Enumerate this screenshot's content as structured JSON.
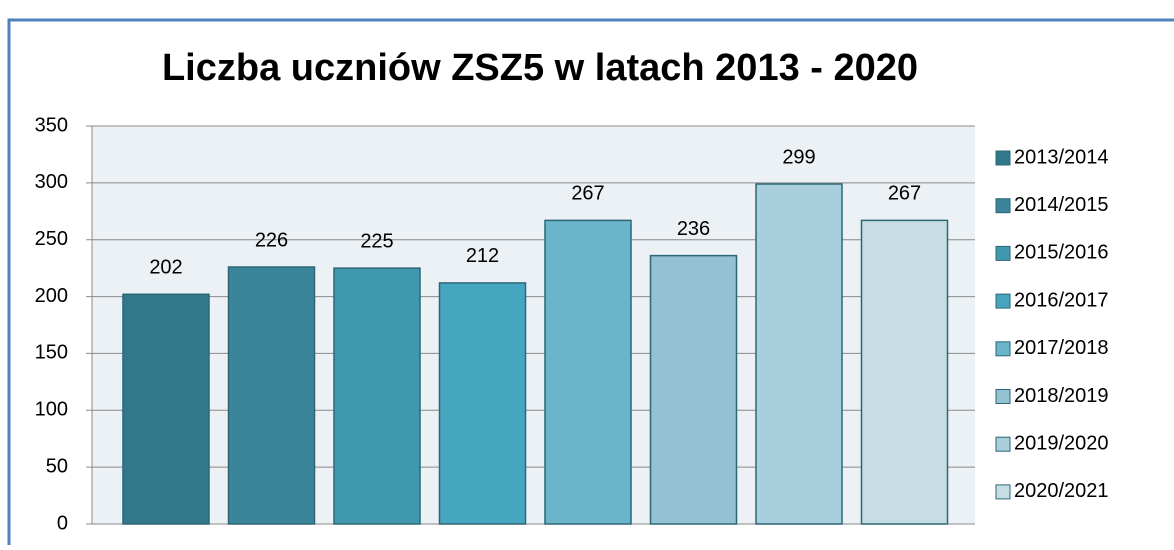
{
  "chart_data": {
    "type": "bar",
    "title": "Liczba uczniów ZSZ5 w latach 2013 - 2020",
    "series": [
      {
        "name": "2013/2014",
        "color": "#31788a",
        "values": [
          202
        ]
      },
      {
        "name": "2014/2015",
        "color": "#3a8599",
        "values": [
          226
        ]
      },
      {
        "name": "2015/2016",
        "color": "#3f98ad",
        "values": [
          225
        ]
      },
      {
        "name": "2016/2017",
        "color": "#47a6bf",
        "values": [
          212
        ]
      },
      {
        "name": "2017/2018",
        "color": "#6bb5cb",
        "values": [
          267
        ]
      },
      {
        "name": "2018/2019",
        "color": "#93c2d3",
        "values": [
          236
        ]
      },
      {
        "name": "2019/2020",
        "color": "#a9cfdc",
        "values": [
          299
        ]
      },
      {
        "name": "2020/2021",
        "color": "#c7dde4",
        "values": [
          267
        ]
      }
    ],
    "ylim": [
      0,
      350
    ],
    "yticks": [
      0,
      50,
      100,
      150,
      200,
      250,
      300,
      350
    ],
    "grid": true,
    "legend": "right"
  }
}
